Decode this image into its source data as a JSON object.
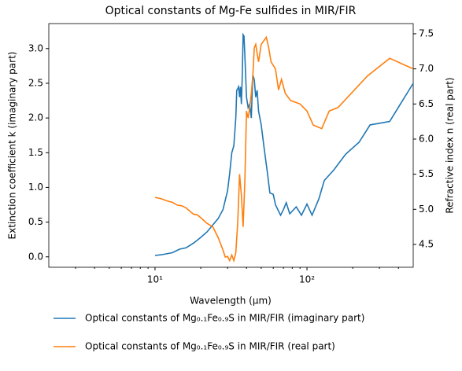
{
  "chart_data": {
    "type": "line",
    "title": "Optical constants of Mg-Fe sulfides in MIR/FIR",
    "x_label": "Wavelength (μm)",
    "y_label": "Extinction coefficient k (imaginary part)",
    "y2_label": "Refractive index n (real part)",
    "xscale": "log",
    "xlim": [
      2,
      500
    ],
    "xticks": [
      {
        "value": 10,
        "label": "10¹"
      },
      {
        "value": 100,
        "label": "10²"
      }
    ],
    "ylim": [
      -0.15,
      3.36
    ],
    "yticks": [
      {
        "value": 0,
        "label": "0.0"
      },
      0.5,
      {
        "value": 1,
        "label": "1.0"
      },
      1.5,
      {
        "value": 2,
        "label": "2.0"
      },
      2.5,
      {
        "value": 3,
        "label": "3.0"
      }
    ],
    "y2lim": [
      4.175,
      7.645
    ],
    "y2ticks": [
      4.5,
      {
        "value": 5,
        "label": "5.0"
      },
      5.5,
      {
        "value": 6,
        "label": "6.0"
      },
      6.5,
      {
        "value": 7,
        "label": "7.0"
      },
      7.5
    ],
    "series": [
      {
        "name": "Optical constants of Mg₀.₁Fe₀.₉S in MIR/FIR (imaginary part)",
        "color": "#1f77b4",
        "axis": "y",
        "x": [
          10,
          11,
          13,
          14.5,
          16,
          18,
          20,
          22,
          24,
          26,
          28,
          30,
          31,
          32,
          33,
          34,
          34.5,
          35,
          35.5,
          36,
          36.5,
          37,
          37.5,
          38,
          38.5,
          39,
          40,
          41,
          42,
          43,
          44,
          45,
          46,
          47,
          48,
          50,
          52,
          55,
          57,
          60,
          62,
          65,
          67,
          70,
          73,
          77,
          85,
          92,
          100,
          108,
          120,
          130,
          150,
          180,
          220,
          260,
          350,
          500
        ],
        "values": [
          0.02,
          0.03,
          0.06,
          0.11,
          0.13,
          0.2,
          0.28,
          0.36,
          0.46,
          0.55,
          0.68,
          0.95,
          1.2,
          1.5,
          1.6,
          2.0,
          2.4,
          2.42,
          2.45,
          2.3,
          2.45,
          2.2,
          2.6,
          3.2,
          3.18,
          2.9,
          2.3,
          2.15,
          2.2,
          2.0,
          2.62,
          2.55,
          2.3,
          2.4,
          2.1,
          1.9,
          1.6,
          1.2,
          0.92,
          0.9,
          0.75,
          0.66,
          0.6,
          0.68,
          0.78,
          0.62,
          0.72,
          0.6,
          0.76,
          0.6,
          0.84,
          1.1,
          1.25,
          1.48,
          1.65,
          1.9,
          1.95,
          2.5
        ]
      },
      {
        "name": "Optical constants of Mg₀.₁Fe₀.₉S in MIR/FIR (real part)",
        "color": "#ff7f0e",
        "axis": "y2",
        "x": [
          10,
          11,
          12,
          13,
          14,
          15,
          16,
          17,
          18,
          19,
          20,
          22,
          24,
          26,
          28,
          29,
          30,
          31,
          32,
          33,
          34,
          35,
          36,
          37,
          38,
          39,
          40,
          41,
          42,
          43,
          44,
          45,
          46,
          48,
          50,
          52,
          54,
          56,
          58,
          62,
          65,
          68,
          72,
          78,
          90,
          100,
          110,
          125,
          140,
          160,
          250,
          350,
          500
        ],
        "values": [
          5.17,
          5.15,
          5.12,
          5.1,
          5.06,
          5.05,
          5.02,
          4.97,
          4.93,
          4.92,
          4.88,
          4.8,
          4.75,
          4.6,
          4.42,
          4.32,
          4.33,
          4.27,
          4.35,
          4.27,
          4.38,
          4.8,
          5.5,
          5.2,
          4.75,
          5.4,
          6.4,
          6.3,
          6.45,
          6.65,
          6.9,
          7.3,
          7.35,
          7.1,
          7.35,
          7.4,
          7.45,
          7.3,
          7.1,
          7.0,
          6.7,
          6.85,
          6.65,
          6.55,
          6.5,
          6.4,
          6.2,
          6.15,
          6.4,
          6.45,
          6.9,
          7.15,
          7.0
        ]
      }
    ]
  }
}
